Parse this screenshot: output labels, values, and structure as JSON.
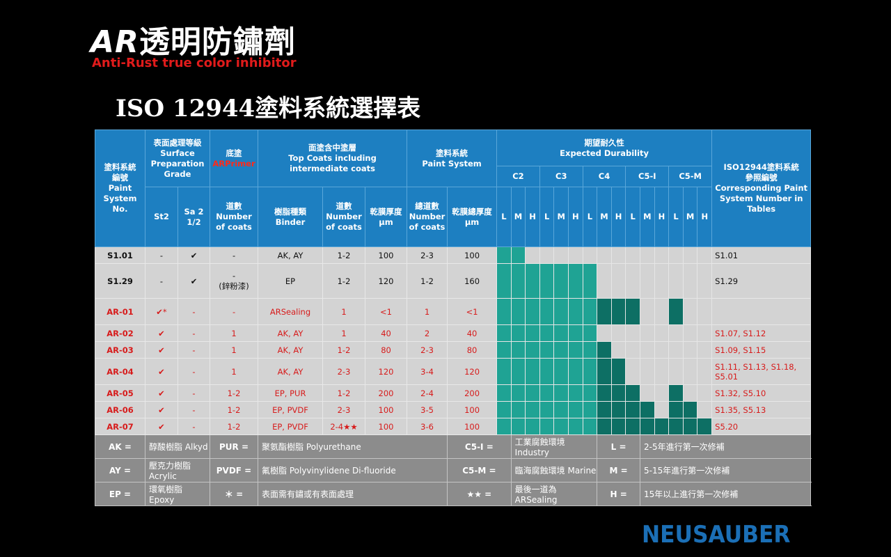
{
  "brand": {
    "title_prefix": "AR",
    "title_rest": "透明防鏽劑",
    "subtitle": "Anti-Rust true color inhibitor"
  },
  "heading": "ISO 12944塗料系統選擇表",
  "logo": "NEUSAUBER",
  "colors": {
    "header_blue": "#1d7fc1",
    "row_gray": "#d3d3d3",
    "legend_gray": "#8c8c8c",
    "durability_teal": "#1fa394",
    "durability_dark_teal": "#0d6f64",
    "ar_red": "#d71b1b"
  },
  "header": {
    "paint_system_no": "塗料系統\n編號\nPaint\nSystem\nNo.",
    "surface_prep": "表面處理等級\nSurface\nPreparation\nGrade",
    "primer": "底塗",
    "primer_red": "ARPrimer",
    "top_coats": "面塗含中塗層\nTop Coats including\nintermediate coats",
    "paint_system": "塗料系統\nPaint System",
    "durability": "期望耐久性\nExpected Durability",
    "ref": "ISO12944塗料系統\n參照編號\nCorresponding Paint\nSystem Number in\nTables",
    "st2": "St2",
    "sa": "Sa 2\n1/2",
    "primer_coats": "道數\nNumber\nof coats",
    "binder": "樹脂種類\nBinder",
    "top_coats_num": "道數\nNumber\nof coats",
    "dft": "乾膜厚度\nμm",
    "total_coats": "總道數\nNumber\nof coats",
    "total_dft": "乾膜總厚度\nμm",
    "categories": [
      "C2",
      "C3",
      "C4",
      "C5-I",
      "C5-M"
    ],
    "lmh": [
      "L",
      "M",
      "H"
    ]
  },
  "rows": [
    {
      "sys": "S1.01",
      "st2": "-",
      "sa": "✔",
      "primer": "-",
      "binder": "AK, AY",
      "top_coats": "1-2",
      "dft": "100",
      "total_coats": "2-3",
      "total_dft": "100",
      "ref": "S1.01",
      "ar": false,
      "durability": [
        1,
        1,
        0,
        0,
        0,
        0,
        0,
        0,
        0,
        0,
        0,
        0,
        0,
        0,
        0
      ]
    },
    {
      "sys": "S1.29",
      "st2": "-",
      "sa": "✔",
      "primer": "-\n(鋅粉漆)",
      "binder": "EP",
      "top_coats": "1-2",
      "dft": "120",
      "total_coats": "1-2",
      "total_dft": "160",
      "ref": "S1.29",
      "ar": false,
      "durability": [
        1,
        1,
        1,
        1,
        1,
        1,
        1,
        0,
        0,
        0,
        0,
        0,
        0,
        0,
        0
      ]
    },
    {
      "sys": "AR-01",
      "st2": "✔*",
      "sa": "-",
      "primer": "-",
      "binder": "ARSealing",
      "top_coats": "1",
      "dft": "<1",
      "total_coats": "1",
      "total_dft": "<1",
      "ref": "",
      "ar": true,
      "durability": [
        1,
        1,
        1,
        1,
        1,
        1,
        1,
        2,
        2,
        2,
        0,
        0,
        2,
        0,
        0
      ]
    },
    {
      "sys": "AR-02",
      "st2": "✔",
      "sa": "-",
      "primer": "1",
      "binder": "AK, AY",
      "top_coats": "1",
      "dft": "40",
      "total_coats": "2",
      "total_dft": "40",
      "ref": "S1.07, S1.12",
      "ar": true,
      "durability": [
        1,
        1,
        1,
        1,
        1,
        1,
        1,
        0,
        0,
        0,
        0,
        0,
        0,
        0,
        0
      ]
    },
    {
      "sys": "AR-03",
      "st2": "✔",
      "sa": "-",
      "primer": "1",
      "binder": "AK, AY",
      "top_coats": "1-2",
      "dft": "80",
      "total_coats": "2-3",
      "total_dft": "80",
      "ref": "S1.09, S1.15",
      "ar": true,
      "durability": [
        1,
        1,
        1,
        1,
        1,
        1,
        1,
        2,
        0,
        0,
        0,
        0,
        0,
        0,
        0
      ]
    },
    {
      "sys": "AR-04",
      "st2": "✔",
      "sa": "-",
      "primer": "1",
      "binder": "AK, AY",
      "top_coats": "2-3",
      "dft": "120",
      "total_coats": "3-4",
      "total_dft": "120",
      "ref": "S1.11, S1.13, S1.18, S5.01",
      "ar": true,
      "durability": [
        1,
        1,
        1,
        1,
        1,
        1,
        1,
        2,
        2,
        0,
        0,
        0,
        0,
        0,
        0
      ]
    },
    {
      "sys": "AR-05",
      "st2": "✔",
      "sa": "-",
      "primer": "1-2",
      "binder": "EP, PUR",
      "top_coats": "1-2",
      "dft": "200",
      "total_coats": "2-4",
      "total_dft": "200",
      "ref": "S1.32, S5.10",
      "ar": true,
      "durability": [
        1,
        1,
        1,
        1,
        1,
        1,
        1,
        2,
        2,
        2,
        0,
        0,
        2,
        0,
        0
      ]
    },
    {
      "sys": "AR-06",
      "st2": "✔",
      "sa": "-",
      "primer": "1-2",
      "binder": "EP, PVDF",
      "top_coats": "2-3",
      "dft": "100",
      "total_coats": "3-5",
      "total_dft": "100",
      "ref": "S1.35, S5.13",
      "ar": true,
      "durability": [
        1,
        1,
        1,
        1,
        1,
        1,
        1,
        2,
        2,
        2,
        2,
        0,
        2,
        2,
        0
      ]
    },
    {
      "sys": "AR-07",
      "st2": "✔",
      "sa": "-",
      "primer": "1-2",
      "binder": "EP, PVDF",
      "top_coats": "2-4★★",
      "dft": "100",
      "total_coats": "3-6",
      "total_dft": "100",
      "ref": "S5.20",
      "ar": true,
      "durability": [
        1,
        1,
        1,
        1,
        1,
        1,
        1,
        2,
        2,
        2,
        2,
        2,
        2,
        2,
        2
      ]
    }
  ],
  "legend": [
    [
      {
        "k": "AK =",
        "v": "醇酸樹脂 Alkyd"
      },
      {
        "k": "PUR =",
        "v": "聚氨酯樹脂 Polyurethane"
      },
      {
        "k": "C5-I =",
        "v": "工業腐蝕環境 Industry"
      },
      {
        "k": "L =",
        "v": "2-5年進行第一次修補"
      }
    ],
    [
      {
        "k": "AY =",
        "v": "壓克力樹脂 Acrylic"
      },
      {
        "k": "PVDF =",
        "v": "氟樹脂 Polyvinylidene Di-fluoride"
      },
      {
        "k": "C5-M =",
        "v": "臨海腐蝕環境 Marine"
      },
      {
        "k": "M =",
        "v": "5-15年進行第一次修補"
      }
    ],
    [
      {
        "k": "EP =",
        "v": "環氧樹脂 Epoxy"
      },
      {
        "k": "＊ =",
        "v": "表面需有鏽或有表面處理"
      },
      {
        "k": "★★ =",
        "v": "最後一道為ARSealing"
      },
      {
        "k": "H =",
        "v": "15年以上進行第一次修補"
      }
    ]
  ]
}
